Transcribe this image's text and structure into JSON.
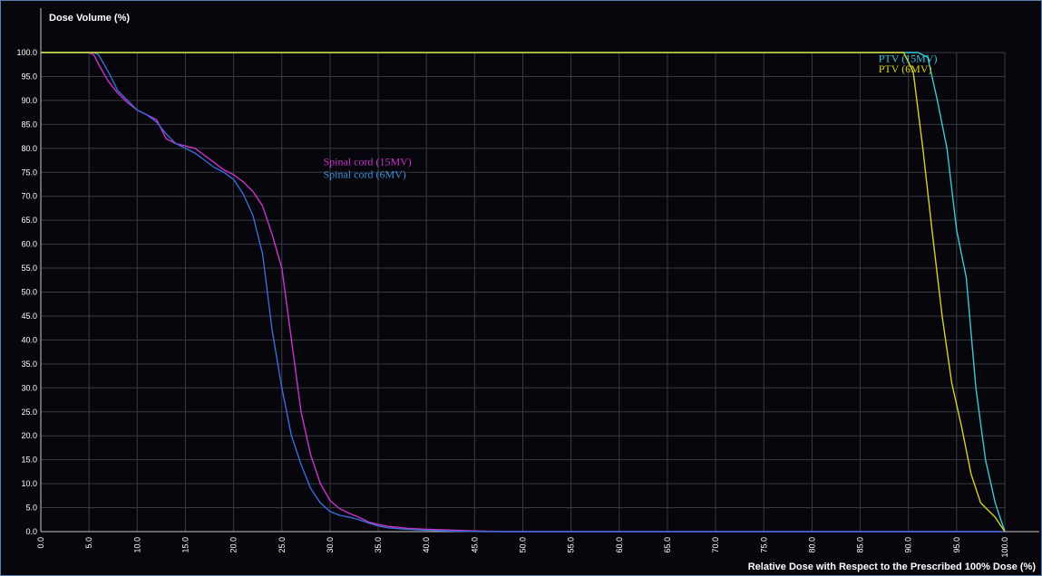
{
  "chart_data": {
    "type": "line",
    "title": "",
    "ylabel": "Dose Volume (%)",
    "xlabel": "Relative Dose with Respect to the Prescribed 100% Dose (%)",
    "xlim": [
      0,
      100
    ],
    "ylim": [
      0,
      100
    ],
    "x_ticks": [
      "0.0",
      "5.0",
      "10.0",
      "15.0",
      "20.0",
      "25.0",
      "30.0",
      "35.0",
      "40.0",
      "45.0",
      "50.0",
      "55.0",
      "60.0",
      "65.0",
      "70.0",
      "75.0",
      "80.0",
      "85.0",
      "90.0",
      "95.0",
      "100.0"
    ],
    "y_ticks": [
      "0.0",
      "5.0",
      "10.0",
      "15.0",
      "20.0",
      "25.0",
      "30.0",
      "35.0",
      "40.0",
      "45.0",
      "50.0",
      "55.0",
      "60.0",
      "65.0",
      "70.0",
      "75.0",
      "80.0",
      "85.0",
      "90.0",
      "95.0",
      "100.0"
    ],
    "grid": true,
    "background_color": "#06060c",
    "grid_color": "#3a3a44",
    "series": [
      {
        "name": "Spinal cord (15MV)",
        "color": "#cc33cc",
        "points": [
          [
            0,
            100
          ],
          [
            5,
            100
          ],
          [
            5.5,
            99.5
          ],
          [
            6,
            97.5
          ],
          [
            7,
            94
          ],
          [
            8,
            91.5
          ],
          [
            9,
            89.5
          ],
          [
            10,
            88
          ],
          [
            11,
            87
          ],
          [
            12,
            86
          ],
          [
            13,
            82
          ],
          [
            14,
            81
          ],
          [
            15,
            80.5
          ],
          [
            16,
            80
          ],
          [
            17,
            78.5
          ],
          [
            18,
            77
          ],
          [
            19,
            75.5
          ],
          [
            20,
            74.5
          ],
          [
            21,
            73
          ],
          [
            22,
            71
          ],
          [
            23,
            68
          ],
          [
            24,
            62
          ],
          [
            25,
            55
          ],
          [
            26,
            40
          ],
          [
            27,
            25
          ],
          [
            28,
            16
          ],
          [
            29,
            10
          ],
          [
            30,
            6.5
          ],
          [
            31,
            4.8
          ],
          [
            32,
            3.8
          ],
          [
            33,
            3
          ],
          [
            34,
            2
          ],
          [
            35,
            1.5
          ],
          [
            36,
            1.1
          ],
          [
            37,
            0.9
          ],
          [
            38,
            0.7
          ],
          [
            40,
            0.5
          ],
          [
            42,
            0.35
          ],
          [
            45,
            0.15
          ],
          [
            48,
            0
          ],
          [
            100,
            0
          ]
        ]
      },
      {
        "name": "Spinal cord (6MV)",
        "color": "#3a6cd6",
        "points": [
          [
            0,
            100
          ],
          [
            5.5,
            100
          ],
          [
            6,
            99.5
          ],
          [
            7,
            96
          ],
          [
            8,
            92
          ],
          [
            9,
            90
          ],
          [
            10,
            88
          ],
          [
            11,
            87
          ],
          [
            12,
            85.5
          ],
          [
            13,
            83
          ],
          [
            14,
            81
          ],
          [
            15,
            80
          ],
          [
            16,
            79
          ],
          [
            17,
            77.5
          ],
          [
            18,
            76
          ],
          [
            19,
            75
          ],
          [
            20,
            73.5
          ],
          [
            21,
            70.5
          ],
          [
            22,
            66
          ],
          [
            23,
            58
          ],
          [
            24,
            42
          ],
          [
            25,
            30
          ],
          [
            26,
            20
          ],
          [
            27,
            14
          ],
          [
            28,
            9
          ],
          [
            29,
            6
          ],
          [
            30,
            4.2
          ],
          [
            31,
            3.4
          ],
          [
            32,
            3
          ],
          [
            33,
            2.5
          ],
          [
            34,
            1.8
          ],
          [
            35,
            1.2
          ],
          [
            36,
            0.8
          ],
          [
            38,
            0.5
          ],
          [
            40,
            0.3
          ],
          [
            43,
            0.1
          ],
          [
            46,
            0
          ],
          [
            100,
            0
          ]
        ]
      },
      {
        "name": "PTV (15MV)",
        "color": "#3ec8d6",
        "points": [
          [
            0,
            100
          ],
          [
            91,
            100
          ],
          [
            92,
            99
          ],
          [
            93,
            90
          ],
          [
            94,
            80
          ],
          [
            95,
            63
          ],
          [
            96,
            53
          ],
          [
            97,
            30
          ],
          [
            98,
            15
          ],
          [
            99,
            6
          ],
          [
            100,
            0
          ]
        ]
      },
      {
        "name": "PTV (6MV)",
        "color": "#d6d02a",
        "points": [
          [
            0,
            100
          ],
          [
            89.5,
            100
          ],
          [
            90.5,
            96
          ],
          [
            91.5,
            80
          ],
          [
            92.5,
            62
          ],
          [
            93.5,
            45
          ],
          [
            94.5,
            31
          ],
          [
            95.5,
            22
          ],
          [
            96.5,
            12
          ],
          [
            97.5,
            6
          ],
          [
            99,
            3
          ],
          [
            100,
            0
          ]
        ]
      }
    ],
    "annotations": [
      {
        "text": "Spinal cord (15MV)",
        "series": 0,
        "color": "#cc33cc",
        "x": 29.3,
        "y": 76.5
      },
      {
        "text": "Spinal cord (6MV)",
        "series": 1,
        "color": "#3a8fd6",
        "x": 29.3,
        "y": 73.8
      },
      {
        "text": "PTV (15MV)",
        "series": 2,
        "color": "#3ec8d6",
        "x": 86.9,
        "y": 98
      },
      {
        "text": "PTV (6MV)",
        "series": 3,
        "color": "#d6d02a",
        "x": 86.9,
        "y": 95.8
      }
    ]
  }
}
